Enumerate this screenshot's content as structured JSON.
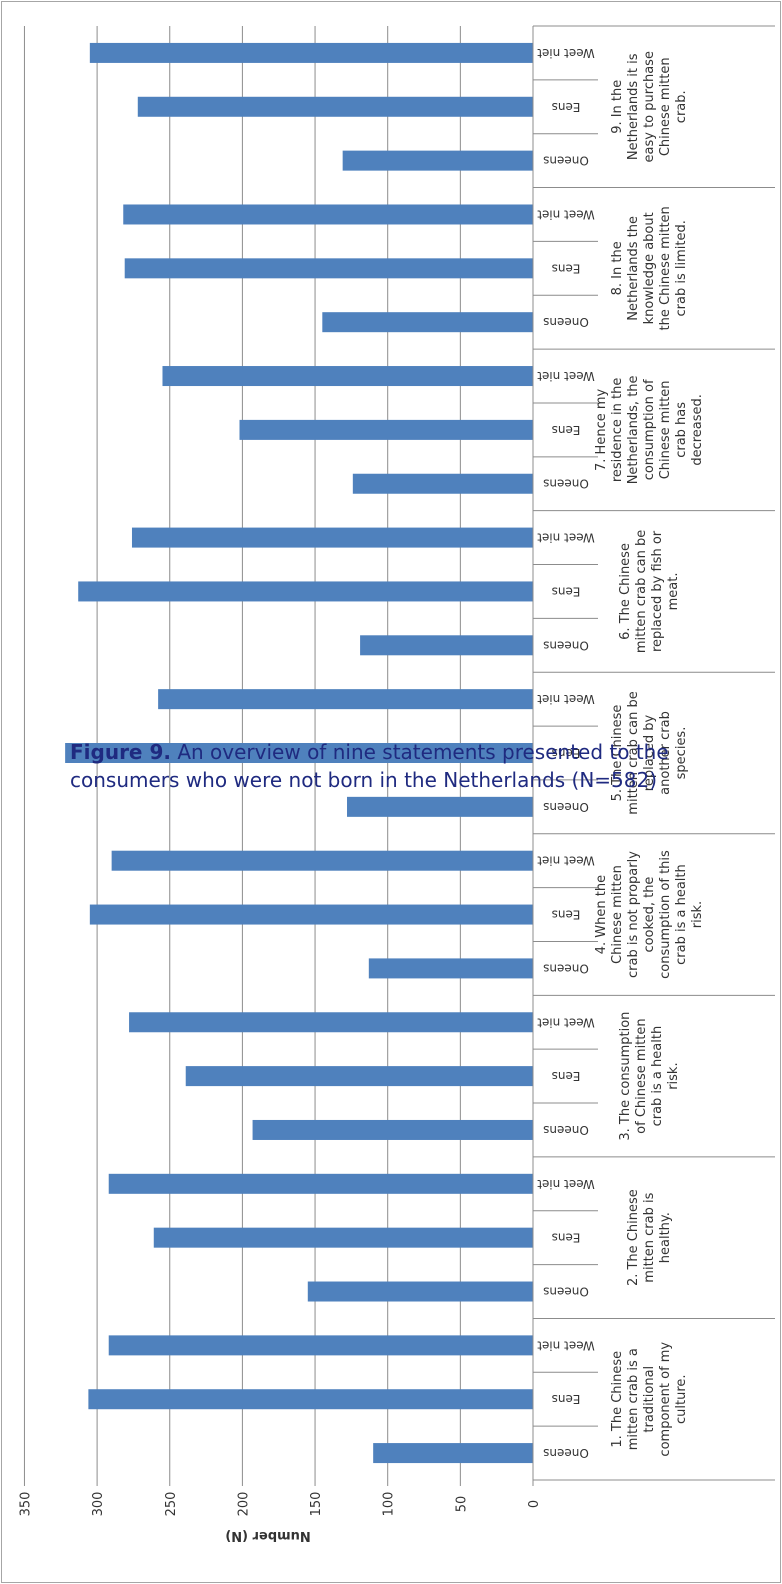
{
  "caption": {
    "label": "Figure 9.",
    "text_line1": "An overview of nine statements presented to the",
    "text_line2": "consumers who were not born in the Netherlands (N=582)"
  },
  "chart_data": {
    "type": "bar",
    "orientation": "horizontal",
    "rotated_page": true,
    "title": "",
    "ylabel": "Number (N)",
    "ylim": [
      0,
      350
    ],
    "yticks": [
      0,
      50,
      100,
      150,
      200,
      250,
      300,
      350
    ],
    "grid": true,
    "bar_color": "#4f81bd",
    "groups": [
      {
        "label": "1. The Chinese mitten crab is a traditional component of my culture.",
        "lines": [
          "1. The Chinese",
          "mitten crab is a",
          "traditional",
          "component of my",
          "culture."
        ],
        "categories": [
          "Oneens",
          "Eens",
          "Weet niet"
        ],
        "values": [
          110,
          306,
          292
        ]
      },
      {
        "label": "2. The Chinese mitten crab is healthy.",
        "lines": [
          "2. The Chinese",
          "mitten crab is",
          "healthy."
        ],
        "categories": [
          "Oneens",
          "Eens",
          "Weet niet"
        ],
        "values": [
          155,
          261,
          292
        ]
      },
      {
        "label": "3. The consumption of Chinese mitten crab is a health risk.",
        "lines": [
          "3. The consumption",
          "of Chinese mitten",
          "crab is a health",
          "risk."
        ],
        "categories": [
          "Oneens",
          "Eens",
          "Weet niet"
        ],
        "values": [
          193,
          239,
          278
        ]
      },
      {
        "label": "4. When the Chinese mitten crab is not proparly cooked, the consumption of this crab is a health risk.",
        "lines": [
          "4. When the",
          "Chinese mitten",
          "crab is not proparly",
          "cooked, the",
          "consumption of this",
          "crab is a health",
          "risk."
        ],
        "categories": [
          "Oneens",
          "Eens",
          "Weet niet"
        ],
        "values": [
          113,
          305,
          290
        ]
      },
      {
        "label": "5. The Chinese mitten crab can be replaced by another crab species.",
        "lines": [
          "5. The Chinese",
          "mitten crab can be",
          "replaced by",
          "another crab",
          "species."
        ],
        "categories": [
          "Oneens",
          "Eens",
          "Weet niet"
        ],
        "values": [
          128,
          322,
          258
        ]
      },
      {
        "label": "6. The Chinese mitten crab can be replaced by fish or meat.",
        "lines": [
          "6. The Chinese",
          "mitten crab can be",
          "replaced by fish or",
          "meat."
        ],
        "categories": [
          "Oneens",
          "Eens",
          "Weet niet"
        ],
        "values": [
          119,
          313,
          276
        ]
      },
      {
        "label": "7. Hence my residence in the Netherlands, the consumption of Chinese mitten crab has decreased.",
        "lines": [
          "7. Hence my",
          "residence in the",
          "Netherlands, the",
          "consumption of",
          "Chinese mitten",
          "crab has",
          "decreased."
        ],
        "categories": [
          "Oneens",
          "Eens",
          "Weet niet"
        ],
        "values": [
          124,
          202,
          255
        ]
      },
      {
        "label": "8. In the Netherlands the knowledge about the Chinese mitten crab is limited.",
        "lines": [
          "8. In the",
          "Netherlands the",
          "knowledge about",
          "the Chinese mitten",
          "crab is limited."
        ],
        "categories": [
          "Oneens",
          "Eens",
          "Weet niet"
        ],
        "values": [
          145,
          281,
          282
        ]
      },
      {
        "label": "9. In the Netherlands it is easy to purchase Chinese mitten crab.",
        "lines": [
          "9. In the",
          "Netherlands it is",
          "easy to purchase",
          "Chinese mitten",
          "crab."
        ],
        "categories": [
          "Oneens",
          "Eens",
          "Weet niet"
        ],
        "values": [
          131,
          272,
          305
        ]
      }
    ]
  }
}
